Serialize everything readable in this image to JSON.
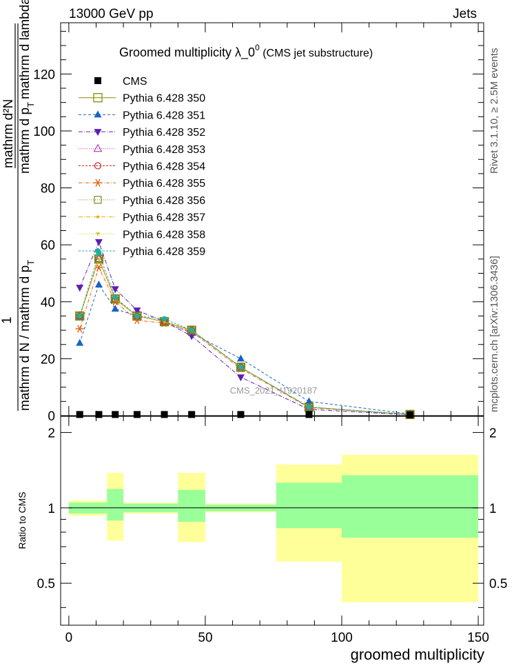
{
  "header": {
    "energy_label": "13000 GeV pp",
    "process_label": "Jets",
    "side_label_top": "Rivet 3.1.10, ≥ 2.5M events",
    "side_label_bottom": "mcplots.cern.ch [arXiv:1306.3436]"
  },
  "chart_data": [
    {
      "type": "line",
      "title": "Groomed multiplicity  λ_0",
      "title_sup": "0",
      "title_suffix": " (CMS jet substructure)",
      "ylabel_parts": {
        "num_left": "1",
        "num_frac_top": "mathrm d²N",
        "num_frac_bottom": "mathrm d p",
        "num_frac_bottom_sub": "T",
        "num_frac_bottom_rest": "mathrm d lambda",
        "den": "mathrm d N / mathrm d p",
        "den_sub": "T"
      },
      "xlim": [
        -3,
        152
      ],
      "ylim": [
        0,
        138
      ],
      "yticks": [
        0,
        20,
        40,
        60,
        80,
        100,
        120
      ],
      "watermark": "CMS_2021_I1920187",
      "legend_placement": "top-left",
      "bin_centers": [
        4,
        11,
        17,
        25,
        35,
        45,
        63,
        88,
        125
      ],
      "series": [
        {
          "name": "CMS",
          "marker": "square-filled",
          "color": "#000000",
          "dash": "none",
          "values": [
            0.4,
            0.4,
            0.4,
            0.4,
            0.4,
            0.4,
            0.4,
            0.4,
            0.3
          ]
        },
        {
          "name": "Pythia 6.428 350",
          "marker": "square-open-big",
          "color": "#8b8b00",
          "dash": "solid",
          "values": [
            35,
            55,
            41,
            35,
            33,
            30,
            17,
            3,
            0.4
          ]
        },
        {
          "name": "Pythia 6.428 351",
          "marker": "triangle-up-filled",
          "color": "#1a62c2",
          "dash": "4,3",
          "values": [
            25.5,
            46,
            37.5,
            35,
            33,
            29,
            20,
            5,
            0.6
          ]
        },
        {
          "name": "Pythia 6.428 352",
          "marker": "triangle-down-filled",
          "color": "#5b1fb5",
          "dash": "6,2,1,2",
          "values": [
            45,
            61,
            44.5,
            37,
            33,
            28,
            13.5,
            2.2,
            0.3
          ]
        },
        {
          "name": "Pythia 6.428 353",
          "marker": "triangle-up-open",
          "color": "#b020b0",
          "dash": "1,2",
          "values": [
            35,
            55,
            41,
            35,
            33,
            30,
            17,
            3,
            0.4
          ]
        },
        {
          "name": "Pythia 6.428 354",
          "marker": "circle-open",
          "color": "#cc2222",
          "dash": "3,2",
          "values": [
            35,
            55,
            41,
            35,
            33,
            30,
            17,
            3,
            0.4
          ]
        },
        {
          "name": "Pythia 6.428 355",
          "marker": "star",
          "color": "#e06010",
          "dash": "5,2,1,2",
          "values": [
            30.5,
            52,
            40,
            33.5,
            32.5,
            29.5,
            16.5,
            2.8,
            0.4
          ]
        },
        {
          "name": "Pythia 6.428 356",
          "marker": "square-open",
          "color": "#6e8b1a",
          "dash": "1,2",
          "values": [
            35,
            55,
            41,
            35,
            33,
            30,
            17,
            3,
            0.4
          ]
        },
        {
          "name": "Pythia 6.428 357",
          "marker": "dot-small",
          "color": "#e0b000",
          "dash": "6,2,1,2",
          "values": [
            35,
            55,
            41,
            35,
            33,
            30,
            17,
            3,
            0.4
          ]
        },
        {
          "name": "Pythia 6.428 358",
          "marker": "triangle-down-small",
          "color": "#c8c800",
          "dash": "1,2",
          "values": [
            35,
            55,
            41,
            35,
            33,
            30,
            17,
            3,
            0.4
          ]
        },
        {
          "name": "Pythia 6.428 359",
          "marker": "circle-filled",
          "color": "#20b0a0",
          "dash": "3,2",
          "values": [
            35,
            57,
            41.5,
            35,
            34,
            30,
            17,
            3,
            0.4
          ]
        }
      ]
    },
    {
      "type": "area",
      "ylabel": "Ratio to CMS",
      "xlabel": "groomed multiplicity",
      "xlim": [
        -3,
        152
      ],
      "ylim": [
        0.34,
        2.32
      ],
      "xticks": [
        0,
        50,
        100,
        150
      ],
      "yticks_labeled": [
        0.5,
        1,
        2
      ],
      "reference_line": 1,
      "bins": [
        {
          "lo": 0,
          "hi": 14,
          "inner": [
            0.95,
            1.05
          ],
          "outer": [
            0.93,
            1.07
          ]
        },
        {
          "lo": 14,
          "hi": 20,
          "inner": [
            0.89,
            1.19
          ],
          "outer": [
            0.74,
            1.38
          ]
        },
        {
          "lo": 20,
          "hi": 40,
          "inner": [
            0.96,
            1.04
          ],
          "outer": [
            0.95,
            1.05
          ]
        },
        {
          "lo": 40,
          "hi": 50,
          "inner": [
            0.88,
            1.18
          ],
          "outer": [
            0.73,
            1.38
          ]
        },
        {
          "lo": 50,
          "hi": 76,
          "inner": [
            0.97,
            1.03
          ],
          "outer": [
            0.96,
            1.04
          ]
        },
        {
          "lo": 76,
          "hi": 100,
          "inner": [
            0.83,
            1.26
          ],
          "outer": [
            0.61,
            1.49
          ]
        },
        {
          "lo": 100,
          "hi": 150,
          "inner": [
            0.76,
            1.35
          ],
          "outer": [
            0.42,
            1.63
          ]
        }
      ],
      "inner_color": "#99ff99",
      "outer_color": "#ffff99"
    }
  ]
}
